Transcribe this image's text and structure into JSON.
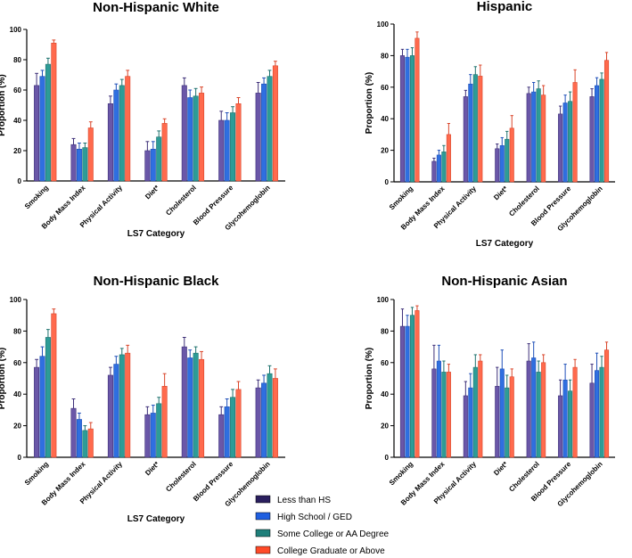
{
  "chart_data": [
    {
      "type": "bar",
      "title": "Non-Hispanic White",
      "xlabel": "LS7  Category",
      "ylabel": "Proportion (%)",
      "ylim": [
        0,
        100
      ],
      "yticks": [
        "0",
        "20",
        "40",
        "60",
        "80",
        "100"
      ],
      "categories": [
        "Smoking",
        "Body Mass Index",
        "Physical Activity",
        "Diet*",
        "Cholesterol",
        "Blood Pressure",
        "Glycohemoglobin"
      ],
      "series": [
        {
          "name": "Less than HS",
          "values": [
            63,
            24,
            51,
            20,
            63,
            40,
            58
          ],
          "errors": [
            8,
            4,
            5,
            6,
            5,
            6,
            7
          ]
        },
        {
          "name": "High School / GED",
          "values": [
            69,
            21,
            60,
            21,
            55,
            40,
            64
          ],
          "errors": [
            4,
            4,
            4,
            5,
            5,
            5,
            4
          ]
        },
        {
          "name": "Some College or AA Degree",
          "values": [
            77,
            22,
            63,
            29,
            56,
            45,
            69
          ],
          "errors": [
            4,
            3,
            4,
            4,
            5,
            4,
            4
          ]
        },
        {
          "name": "College Graduate or Above",
          "values": [
            91,
            35,
            69,
            38,
            58,
            51,
            76
          ],
          "errors": [
            2,
            4,
            4,
            3,
            4,
            4,
            3
          ]
        }
      ]
    },
    {
      "type": "bar",
      "title": "Hispanic",
      "xlabel": "LS7  Category",
      "ylabel": "Proportion (%)",
      "ylim": [
        0,
        100
      ],
      "yticks": [
        "0",
        "20",
        "40",
        "60",
        "80",
        "100"
      ],
      "categories": [
        "Smoking",
        "Body Mass Index",
        "Physical Activity",
        "Diet*",
        "Cholesterol",
        "Blood Pressure",
        "Glycohemoglobin"
      ],
      "series": [
        {
          "name": "Less than HS",
          "values": [
            80,
            13,
            54,
            21,
            56,
            43,
            54
          ],
          "errors": [
            4,
            2,
            4,
            3,
            4,
            5,
            5
          ]
        },
        {
          "name": "High School / GED",
          "values": [
            79,
            17,
            62,
            23,
            57,
            50,
            61
          ],
          "errors": [
            5,
            3,
            6,
            5,
            6,
            5,
            5
          ]
        },
        {
          "name": "Some College or AA Degree",
          "values": [
            80,
            19,
            68,
            27,
            59,
            51,
            65
          ],
          "errors": [
            5,
            4,
            5,
            5,
            5,
            6,
            4
          ]
        },
        {
          "name": "College Graduate or Above",
          "values": [
            91,
            30,
            67,
            34,
            55,
            63,
            77
          ],
          "errors": [
            4,
            7,
            7,
            8,
            6,
            8,
            5
          ]
        }
      ]
    },
    {
      "type": "bar",
      "title": "Non-Hispanic Black",
      "xlabel": "LS7  Category",
      "ylabel": "Proportion (%)",
      "ylim": [
        0,
        100
      ],
      "yticks": [
        "0",
        "20",
        "40",
        "60",
        "80",
        "100"
      ],
      "categories": [
        "Smoking",
        "Body Mass Index",
        "Physical Activity",
        "Diet*",
        "Cholesterol",
        "Blood Pressure",
        "Glycohemoglobin"
      ],
      "series": [
        {
          "name": "Less than HS",
          "values": [
            57,
            31,
            52,
            27,
            70,
            27,
            44
          ],
          "errors": [
            5,
            6,
            5,
            5,
            6,
            5,
            5
          ]
        },
        {
          "name": "High School / GED",
          "values": [
            64,
            24,
            59,
            28,
            63,
            32,
            47
          ],
          "errors": [
            6,
            4,
            5,
            5,
            5,
            5,
            5
          ]
        },
        {
          "name": "Some College or AA Degree",
          "values": [
            76,
            17,
            65,
            34,
            66,
            38,
            53
          ],
          "errors": [
            5,
            3,
            4,
            4,
            4,
            5,
            5
          ]
        },
        {
          "name": "College Graduate or Above",
          "values": [
            91,
            18,
            66,
            45,
            62,
            43,
            50
          ],
          "errors": [
            3,
            4,
            5,
            8,
            5,
            5,
            6
          ]
        }
      ]
    },
    {
      "type": "bar",
      "title": "Non-Hispanic Asian",
      "xlabel": "LS7  Category",
      "ylabel": "Proportion (%)",
      "ylim": [
        0,
        100
      ],
      "yticks": [
        "0",
        "20",
        "40",
        "60",
        "80",
        "100"
      ],
      "categories": [
        "Smoking",
        "Body Mass Index",
        "Physical Activity",
        "Diet*",
        "Cholesterol",
        "Blood Pressure",
        "Glycohemoglobin"
      ],
      "series": [
        {
          "name": "Less than HS",
          "values": [
            83,
            56,
            39,
            45,
            61,
            39,
            47
          ],
          "errors": [
            11,
            15,
            9,
            12,
            11,
            10,
            12
          ]
        },
        {
          "name": "High School / GED",
          "values": [
            83,
            61,
            44,
            56,
            63,
            49,
            55
          ],
          "errors": [
            7,
            10,
            9,
            12,
            10,
            10,
            11
          ]
        },
        {
          "name": "Some College or AA Degree",
          "values": [
            90,
            54,
            57,
            44,
            54,
            42,
            57
          ],
          "errors": [
            5,
            7,
            8,
            8,
            7,
            7,
            7
          ]
        },
        {
          "name": "College Graduate or Above",
          "values": [
            93,
            54,
            61,
            51,
            60,
            57,
            68
          ],
          "errors": [
            3,
            5,
            4,
            5,
            5,
            5,
            5
          ]
        }
      ]
    }
  ],
  "legend": {
    "placement": "bottom-center",
    "items": [
      "Less than HS",
      "High School / GED",
      "Some College or AA Degree",
      "College Graduate or Above"
    ]
  },
  "colors": {
    "series_fill": [
      "#6a57a8",
      "#2f6fe0",
      "#2d9c97",
      "#ff6a4d"
    ],
    "series_stroke": [
      "#3d2f78",
      "#1e4fb8",
      "#1d716d",
      "#d9452a"
    ],
    "legend_swatch": [
      "#2a1f5e",
      "#1f5fe0",
      "#1f7f7a",
      "#ff4a28"
    ]
  }
}
